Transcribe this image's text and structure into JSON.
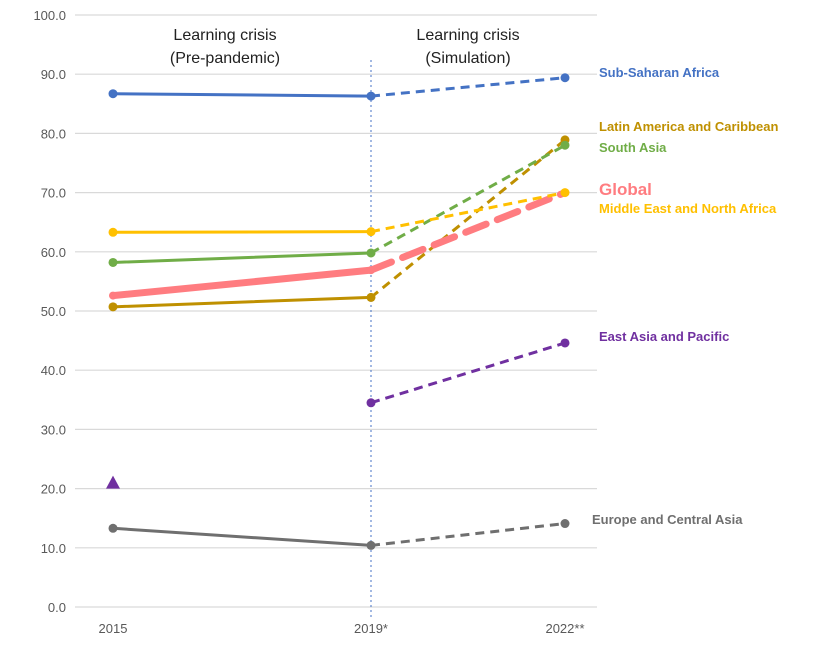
{
  "chart_data": {
    "type": "line",
    "categories": [
      "2015",
      "2019*",
      "2022**"
    ],
    "ylim": [
      0,
      100
    ],
    "yticks": [
      "0.0",
      "10.0",
      "20.0",
      "30.0",
      "40.0",
      "50.0",
      "60.0",
      "70.0",
      "80.0",
      "90.0",
      "100.0"
    ],
    "grid": true,
    "legend": "direct labels at right",
    "period_headers": [
      {
        "line1": "Learning crisis",
        "line2": "(Pre-pandemic)"
      },
      {
        "line1": "Learning crisis",
        "line2": "(Simulation)"
      }
    ],
    "divider_at": "2019*",
    "note": "solid 2015–2019*, dashed 2019*–2022**",
    "series": [
      {
        "name": "Sub-Saharan Africa",
        "color": "#4472C4",
        "values": [
          86.7,
          86.3,
          89.4
        ]
      },
      {
        "name": "Latin America and Caribbean",
        "color": "#BF9000",
        "values": [
          50.7,
          52.3,
          78.9
        ]
      },
      {
        "name": "South Asia",
        "color": "#70AD47",
        "values": [
          58.2,
          59.8,
          78.0
        ]
      },
      {
        "name": "Global",
        "color": "#FF7C80",
        "values": [
          52.6,
          56.9,
          70.0
        ],
        "emphasis": true
      },
      {
        "name": "Middle East and North Africa",
        "color": "#FFC000",
        "values": [
          63.3,
          63.4,
          70.0
        ]
      },
      {
        "name": "East Asia and Pacific",
        "color": "#7030A0",
        "values": [
          21.0,
          34.5,
          44.6
        ],
        "first_marker": "triangle",
        "first_unconnected": true
      },
      {
        "name": "Europe and Central Asia",
        "color": "#6F6F6F",
        "values": [
          13.3,
          10.4,
          14.1
        ]
      }
    ]
  }
}
